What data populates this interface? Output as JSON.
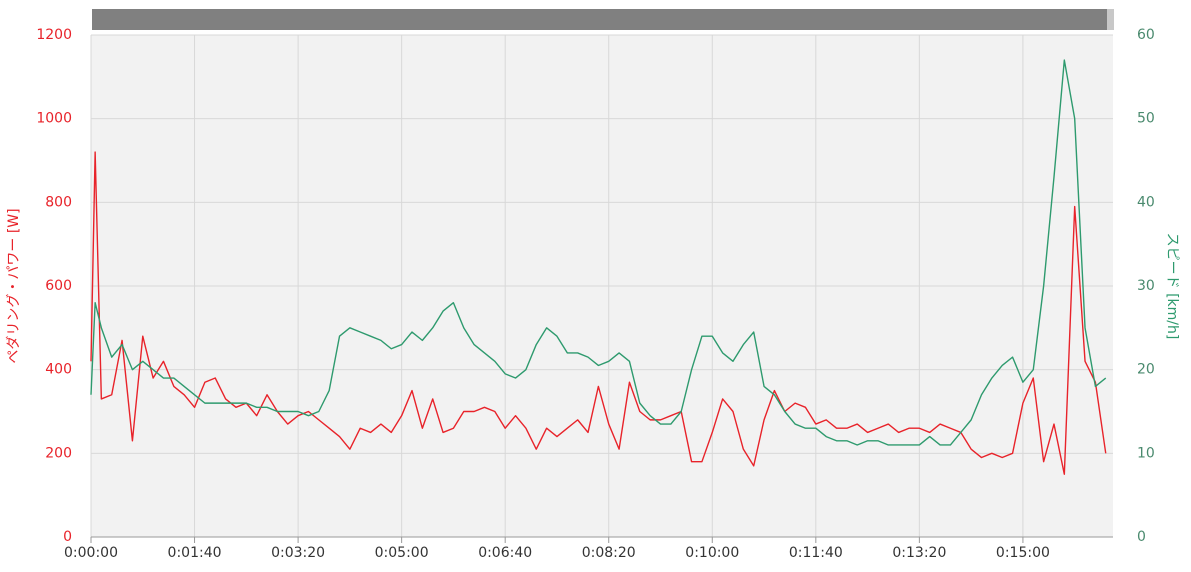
{
  "chart_data": {
    "type": "line",
    "ylabel": "ペダリング・パワー [W]",
    "y2label": "スピード [km/h]",
    "x": [
      0,
      4,
      10,
      20,
      30,
      40,
      50,
      60,
      70,
      80,
      90,
      100,
      110,
      120,
      130,
      140,
      150,
      160,
      170,
      180,
      190,
      200,
      210,
      220,
      230,
      240,
      250,
      260,
      270,
      280,
      290,
      300,
      310,
      320,
      330,
      340,
      350,
      360,
      370,
      380,
      390,
      400,
      410,
      420,
      430,
      440,
      450,
      460,
      470,
      480,
      490,
      500,
      510,
      520,
      530,
      540,
      550,
      560,
      570,
      580,
      590,
      600,
      610,
      620,
      630,
      640,
      650,
      660,
      670,
      680,
      690,
      700,
      710,
      720,
      730,
      740,
      750,
      760,
      770,
      780,
      790,
      800,
      810,
      820,
      830,
      840,
      850,
      860,
      870,
      880,
      890,
      900,
      910,
      920,
      930,
      940,
      950,
      960,
      970,
      980
    ],
    "series": [
      {
        "color": "#e8232a",
        "axis": "y",
        "values": [
          420,
          920,
          330,
          340,
          470,
          230,
          480,
          380,
          420,
          360,
          340,
          310,
          370,
          380,
          330,
          310,
          320,
          290,
          340,
          300,
          270,
          290,
          300,
          280,
          260,
          240,
          210,
          260,
          250,
          270,
          250,
          290,
          350,
          260,
          330,
          250,
          260,
          300,
          300,
          310,
          300,
          260,
          290,
          260,
          210,
          260,
          240,
          260,
          280,
          250,
          360,
          270,
          210,
          370,
          300,
          280,
          280,
          290,
          300,
          180,
          180,
          250,
          330,
          300,
          210,
          170,
          280,
          350,
          300,
          320,
          310,
          270,
          280,
          260,
          260,
          270,
          250,
          260,
          270,
          250,
          260,
          260,
          250,
          270,
          260,
          250,
          210,
          190,
          200,
          190,
          200,
          320,
          380,
          180,
          270,
          150,
          790,
          420,
          370,
          200
        ]
      },
      {
        "color": "#2e9a6e",
        "axis": "y2",
        "values": [
          17,
          28,
          25,
          21.5,
          23,
          20,
          21,
          20,
          19,
          19,
          18,
          17,
          16,
          16,
          16,
          16,
          16,
          15.5,
          15.5,
          15,
          15,
          15,
          14.5,
          15,
          17.5,
          24,
          25,
          24.5,
          24,
          23.5,
          22.5,
          23,
          24.5,
          23.5,
          25,
          27,
          28,
          25,
          23,
          22,
          21,
          19.5,
          19,
          20,
          23,
          25,
          24,
          22,
          22,
          21.5,
          20.5,
          21,
          22,
          21,
          16,
          14.5,
          13.5,
          13.5,
          15,
          20,
          24,
          24,
          22,
          21,
          23,
          24.5,
          18,
          17,
          15,
          13.5,
          13,
          13,
          12,
          11.5,
          11.5,
          11,
          11.5,
          11.5,
          11,
          11,
          11,
          11,
          12,
          11,
          11,
          12.5,
          14,
          17,
          19,
          20.5,
          21.5,
          18.5,
          20,
          30,
          43,
          57,
          50,
          25,
          18,
          19
        ]
      }
    ],
    "xlim": [
      0,
      987
    ],
    "xticks": [
      {
        "value": 0,
        "label": "0:00:00"
      },
      {
        "value": 100,
        "label": "0:01:40"
      },
      {
        "value": 200,
        "label": "0:03:20"
      },
      {
        "value": 300,
        "label": "0:05:00"
      },
      {
        "value": 400,
        "label": "0:06:40"
      },
      {
        "value": 500,
        "label": "0:08:20"
      },
      {
        "value": 600,
        "label": "0:10:00"
      },
      {
        "value": 700,
        "label": "0:11:40"
      },
      {
        "value": 800,
        "label": "0:13:20"
      },
      {
        "value": 900,
        "label": "0:15:00"
      }
    ],
    "ylim": [
      0,
      1200
    ],
    "yticks": [
      0,
      200,
      400,
      600,
      800,
      1000,
      1200
    ],
    "y2lim": [
      0,
      60
    ],
    "y2ticks": [
      0,
      10,
      20,
      30,
      40,
      50,
      60
    ],
    "grid": true
  }
}
